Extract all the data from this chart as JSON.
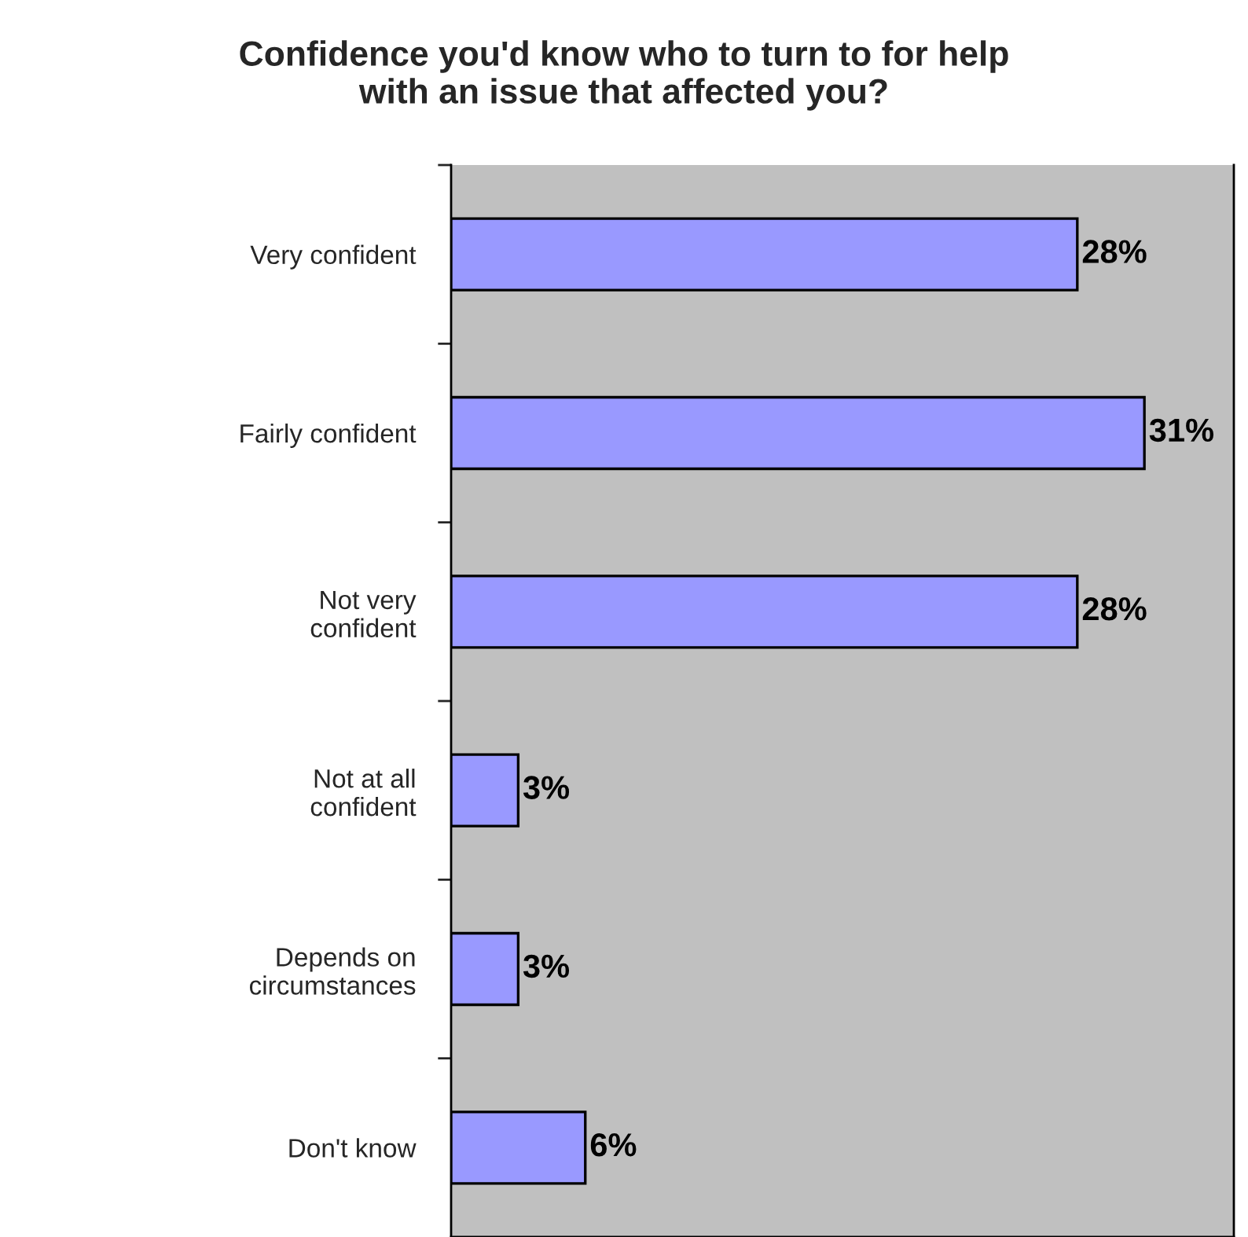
{
  "chart_data": {
    "type": "bar",
    "orientation": "horizontal",
    "title": "Confidence you'd know who to turn to for help\nwith an issue that affected you?",
    "categories": [
      "Very confident",
      "Fairly confident",
      "Not very\nconfident",
      "Not at all\nconfident",
      "Depends on\ncircumstances",
      "Don't know"
    ],
    "values": [
      28,
      31,
      28,
      3,
      3,
      6
    ],
    "value_labels": [
      "28%",
      "31%",
      "28%",
      "3%",
      "3%",
      "6%"
    ],
    "color": "#9999ff",
    "xlim": [
      0,
      35
    ],
    "tick_labels": "y",
    "grid": false,
    "legend": false
  }
}
